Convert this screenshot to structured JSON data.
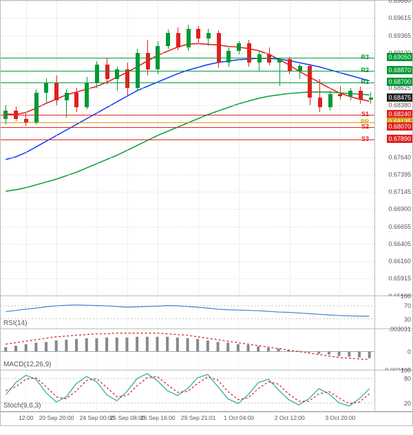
{
  "main": {
    "ylim": [
      0.65666,
      0.6986
    ],
    "yticks": [
      0.6986,
      0.69615,
      0.69365,
      0.6912,
      0.6887,
      0.68625,
      0.6838,
      0.68135,
      0.6789,
      0.6764,
      0.67395,
      0.67145,
      0.669,
      0.66655,
      0.66405,
      0.6616,
      0.65915,
      0.65666
    ],
    "grid_color": "#dddddd",
    "background": "#ffffff",
    "current_price": 0.68475,
    "current_price_bg": "#222222",
    "levels": [
      {
        "name": "R3",
        "value": 0.6905,
        "color": "#009933"
      },
      {
        "name": "R2",
        "value": 0.6887,
        "color": "#009933"
      },
      {
        "name": "R1",
        "value": 0.687,
        "color": "#009933"
      },
      {
        "name": "S1",
        "value": 0.6824,
        "color": "#e02020"
      },
      {
        "name": "PP",
        "value": 0.68135,
        "color": "#d0a010"
      },
      {
        "name": "S2",
        "value": 0.6807,
        "color": "#e02020"
      },
      {
        "name": "S3",
        "value": 0.6789,
        "color": "#e02020"
      }
    ],
    "ma": [
      {
        "color": "#e02020",
        "width": 1.6,
        "pts": [
          0.6825,
          0.6824,
          0.6827,
          0.6833,
          0.684,
          0.6846,
          0.6852,
          0.6856,
          0.686,
          0.6864,
          0.687,
          0.6877,
          0.6884,
          0.6892,
          0.69,
          0.6908,
          0.6914,
          0.692,
          0.6924,
          0.6925,
          0.6924,
          0.6923,
          0.6921,
          0.692,
          0.6918,
          0.6915,
          0.691,
          0.6903,
          0.6895,
          0.6886,
          0.6878,
          0.687,
          0.6862,
          0.6855,
          0.685,
          0.6846,
          0.6843
        ]
      },
      {
        "color": "#1040ff",
        "width": 1.6,
        "pts": [
          0.676,
          0.6764,
          0.677,
          0.6778,
          0.6786,
          0.6794,
          0.6802,
          0.681,
          0.6818,
          0.6826,
          0.6834,
          0.6842,
          0.685,
          0.6858,
          0.6864,
          0.687,
          0.6876,
          0.6882,
          0.6887,
          0.6891,
          0.6895,
          0.6898,
          0.69,
          0.6902,
          0.6903,
          0.6904,
          0.6904,
          0.6903,
          0.6901,
          0.6898,
          0.6895,
          0.6892,
          0.6888,
          0.6884,
          0.688,
          0.6876,
          0.6872
        ]
      },
      {
        "color": "#10a040",
        "width": 1.6,
        "pts": [
          0.6715,
          0.6717,
          0.672,
          0.6724,
          0.6728,
          0.6732,
          0.6737,
          0.6742,
          0.6748,
          0.6754,
          0.676,
          0.6766,
          0.6773,
          0.678,
          0.6787,
          0.6794,
          0.68,
          0.6806,
          0.6812,
          0.6818,
          0.6824,
          0.6829,
          0.6834,
          0.6839,
          0.6843,
          0.6847,
          0.685,
          0.6852,
          0.6854,
          0.6855,
          0.6856,
          0.6856,
          0.6856,
          0.6855,
          0.6854,
          0.6853,
          0.6852
        ]
      }
    ],
    "candles": {
      "up_color": "#009933",
      "down_color": "#e02020",
      "wick_color": "#333333",
      "width": 6,
      "data": [
        {
          "o": 0.6818,
          "h": 0.6838,
          "l": 0.681,
          "c": 0.683
        },
        {
          "o": 0.683,
          "h": 0.6836,
          "l": 0.6815,
          "c": 0.6818
        },
        {
          "o": 0.6818,
          "h": 0.6826,
          "l": 0.6808,
          "c": 0.6812
        },
        {
          "o": 0.6812,
          "h": 0.686,
          "l": 0.681,
          "c": 0.6855
        },
        {
          "o": 0.6855,
          "h": 0.6876,
          "l": 0.6842,
          "c": 0.687
        },
        {
          "o": 0.687,
          "h": 0.688,
          "l": 0.6838,
          "c": 0.6845
        },
        {
          "o": 0.6845,
          "h": 0.686,
          "l": 0.682,
          "c": 0.6855
        },
        {
          "o": 0.6855,
          "h": 0.6862,
          "l": 0.6828,
          "c": 0.6835
        },
        {
          "o": 0.6835,
          "h": 0.6878,
          "l": 0.6832,
          "c": 0.687
        },
        {
          "o": 0.687,
          "h": 0.69,
          "l": 0.6862,
          "c": 0.6895
        },
        {
          "o": 0.6895,
          "h": 0.6905,
          "l": 0.6867,
          "c": 0.6875
        },
        {
          "o": 0.6875,
          "h": 0.6892,
          "l": 0.6858,
          "c": 0.6888
        },
        {
          "o": 0.6888,
          "h": 0.6898,
          "l": 0.685,
          "c": 0.6862
        },
        {
          "o": 0.6862,
          "h": 0.6918,
          "l": 0.6858,
          "c": 0.6912
        },
        {
          "o": 0.6912,
          "h": 0.693,
          "l": 0.688,
          "c": 0.6888
        },
        {
          "o": 0.6888,
          "h": 0.6928,
          "l": 0.6882,
          "c": 0.6922
        },
        {
          "o": 0.6922,
          "h": 0.6945,
          "l": 0.6918,
          "c": 0.694
        },
        {
          "o": 0.694,
          "h": 0.6948,
          "l": 0.6916,
          "c": 0.692
        },
        {
          "o": 0.692,
          "h": 0.6952,
          "l": 0.6915,
          "c": 0.6946
        },
        {
          "o": 0.6946,
          "h": 0.695,
          "l": 0.6926,
          "c": 0.6932
        },
        {
          "o": 0.6932,
          "h": 0.6946,
          "l": 0.6922,
          "c": 0.694
        },
        {
          "o": 0.694,
          "h": 0.6944,
          "l": 0.689,
          "c": 0.6898
        },
        {
          "o": 0.6898,
          "h": 0.692,
          "l": 0.6892,
          "c": 0.6915
        },
        {
          "o": 0.6915,
          "h": 0.6928,
          "l": 0.691,
          "c": 0.6926
        },
        {
          "o": 0.6926,
          "h": 0.693,
          "l": 0.6892,
          "c": 0.6898
        },
        {
          "o": 0.6898,
          "h": 0.6915,
          "l": 0.6886,
          "c": 0.691
        },
        {
          "o": 0.691,
          "h": 0.692,
          "l": 0.6894,
          "c": 0.6898
        },
        {
          "o": 0.6898,
          "h": 0.6905,
          "l": 0.6865,
          "c": 0.6903
        },
        {
          "o": 0.6903,
          "h": 0.6906,
          "l": 0.6882,
          "c": 0.6886
        },
        {
          "o": 0.6886,
          "h": 0.6896,
          "l": 0.6875,
          "c": 0.6893
        },
        {
          "o": 0.6893,
          "h": 0.6896,
          "l": 0.6838,
          "c": 0.6848
        },
        {
          "o": 0.6848,
          "h": 0.6875,
          "l": 0.6828,
          "c": 0.6835
        },
        {
          "o": 0.6835,
          "h": 0.6858,
          "l": 0.683,
          "c": 0.6853
        },
        {
          "o": 0.6853,
          "h": 0.6865,
          "l": 0.6846,
          "c": 0.685
        },
        {
          "o": 0.685,
          "h": 0.6862,
          "l": 0.6845,
          "c": 0.6858
        },
        {
          "o": 0.6858,
          "h": 0.6864,
          "l": 0.684,
          "c": 0.6846
        },
        {
          "o": 0.6846,
          "h": 0.6856,
          "l": 0.684,
          "c": 0.6848
        }
      ]
    }
  },
  "rsi": {
    "label": "RSI(14)",
    "height": 48,
    "ylim": [
      0,
      100
    ],
    "yticks": [
      100,
      70,
      30
    ],
    "line_color": "#4080d0",
    "line_width": 1.2,
    "hlines": [
      {
        "v": 70,
        "c": "#bbb"
      },
      {
        "v": 30,
        "c": "#bbb"
      }
    ],
    "data": [
      52,
      56,
      60,
      63,
      67,
      70,
      72,
      73,
      72,
      71,
      70,
      68,
      66,
      67,
      68,
      69,
      71,
      70,
      68,
      66,
      63,
      60,
      58,
      57,
      56,
      55,
      53,
      51,
      50,
      48,
      46,
      44,
      42,
      40,
      39,
      38,
      38
    ]
  },
  "macd": {
    "label": "MACD(12,26,9)",
    "height": 60,
    "ylim": [
      -0.00246,
      0.00303
    ],
    "yticks": [
      0.003031,
      0,
      -0.002465
    ],
    "signal_color": "#e02020",
    "signal_dash": "3,3",
    "hist_color": "#888",
    "hist": [
      0.0006,
      0.0008,
      0.001,
      0.0012,
      0.0013,
      0.0015,
      0.0016,
      0.0017,
      0.0018,
      0.0018,
      0.0019,
      0.0019,
      0.0019,
      0.002,
      0.002,
      0.002,
      0.002,
      0.0019,
      0.0018,
      0.0017,
      0.0015,
      0.0013,
      0.0012,
      0.001,
      0.0009,
      0.0007,
      0.0005,
      0.0004,
      0.0002,
      0.0001,
      -0.0001,
      -0.0003,
      -0.0004,
      -0.0006,
      -0.0007,
      -0.0008,
      -0.0009
    ],
    "signal": [
      0.001,
      0.0012,
      0.0014,
      0.0016,
      0.0018,
      0.002,
      0.0021,
      0.0022,
      0.0023,
      0.0024,
      0.0024,
      0.0025,
      0.0025,
      0.0025,
      0.0025,
      0.0025,
      0.0024,
      0.0023,
      0.0022,
      0.002,
      0.0018,
      0.0016,
      0.0014,
      0.0012,
      0.001,
      0.0008,
      0.0006,
      0.0004,
      0.0002,
      0.0,
      -0.0002,
      -0.0004,
      -0.0006,
      -0.0008,
      -0.0009,
      -0.001,
      -0.0011
    ]
  },
  "stoch": {
    "label": "Stoch(9,6,3)",
    "height": 60,
    "ylim": [
      0,
      100
    ],
    "yticks": [
      100,
      80,
      20
    ],
    "k_color": "#30b0a0",
    "d_color": "#e02020",
    "d_dash": "3,3",
    "hlines": [
      {
        "v": 80,
        "c": "#bbb"
      },
      {
        "v": 20,
        "c": "#bbb"
      }
    ],
    "k": [
      40,
      70,
      88,
      78,
      45,
      22,
      35,
      68,
      85,
      72,
      40,
      25,
      48,
      80,
      92,
      75,
      50,
      38,
      55,
      82,
      90,
      60,
      30,
      18,
      40,
      70,
      78,
      52,
      28,
      15,
      30,
      55,
      42,
      20,
      12,
      30,
      55
    ],
    "d": [
      50,
      60,
      78,
      82,
      60,
      35,
      30,
      50,
      75,
      80,
      58,
      35,
      38,
      62,
      82,
      85,
      65,
      46,
      48,
      68,
      84,
      76,
      48,
      28,
      32,
      55,
      72,
      66,
      42,
      24,
      24,
      42,
      48,
      32,
      18,
      22,
      42
    ]
  },
  "xaxis": {
    "ticks": [
      {
        "i": 2,
        "label": "12:00"
      },
      {
        "i": 5,
        "label": "20 Sep 20:00"
      },
      {
        "i": 9,
        "label": "24 Sep 00:00"
      },
      {
        "i": 12,
        "label": "25 Sep 08:00"
      },
      {
        "i": 15,
        "label": "26 Sep 16:00"
      },
      {
        "i": 19,
        "label": "29 Sep 21:01"
      },
      {
        "i": 23,
        "label": "1 Oct 04:00"
      },
      {
        "i": 28,
        "label": "2 Oct 12:00"
      },
      {
        "i": 33,
        "label": "3 Oct 20:00"
      }
    ],
    "n": 37
  }
}
